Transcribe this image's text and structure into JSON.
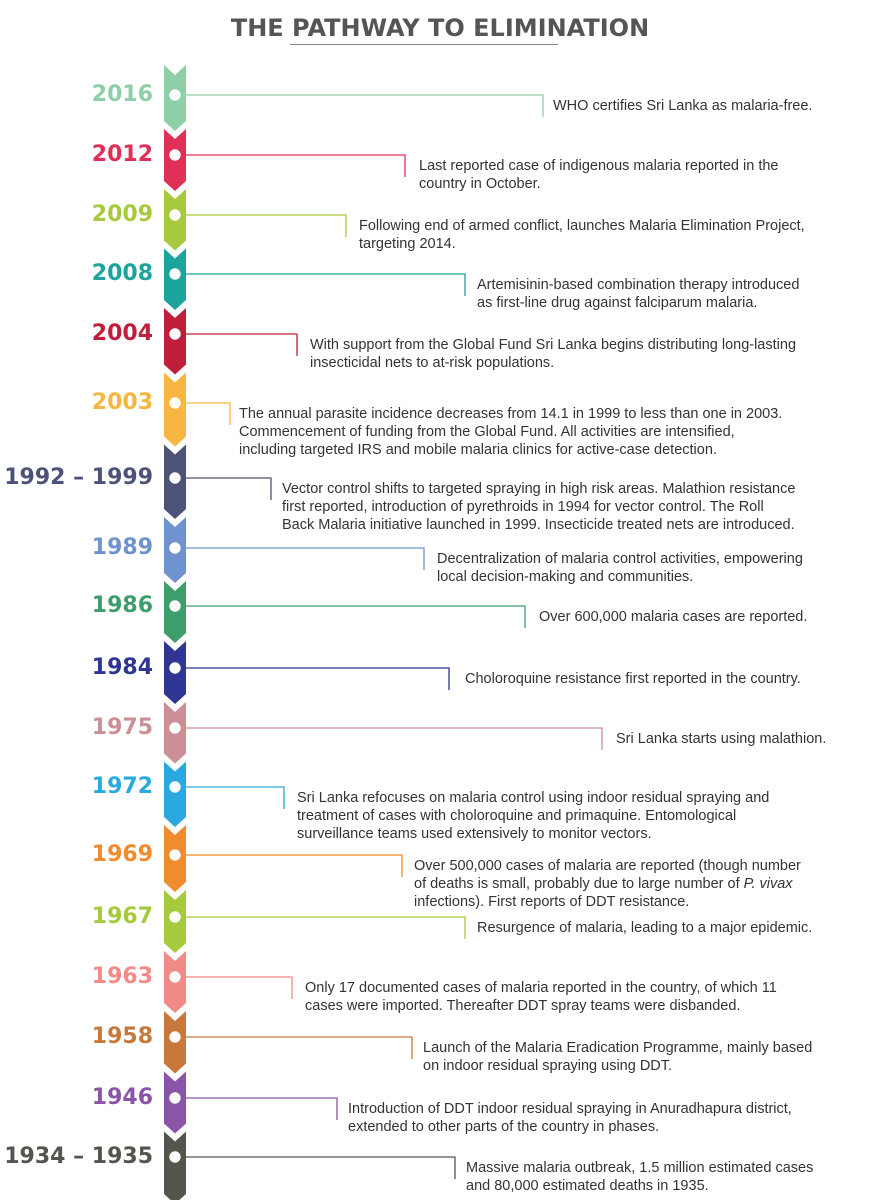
{
  "title": "THE PATHWAY TO ELIMINATION",
  "events": [
    {
      "year": "2016",
      "color": "#8ecfa8",
      "lines": [
        "WHO certifies Sri Lanka as malaria-free."
      ]
    },
    {
      "year": "2012",
      "color": "#e03058",
      "lines": [
        "Last reported case of indigenous malaria reported in the",
        "country in October."
      ]
    },
    {
      "year": "2009",
      "color": "#a6c93e",
      "lines": [
        "Following end of armed conflict, launches Malaria Elimination Project,",
        "targeting 2014."
      ]
    },
    {
      "year": "2008",
      "color": "#1ba39c",
      "lines": [
        "Artemisinin-based combination therapy introduced",
        "as first-line drug against falciparum malaria."
      ]
    },
    {
      "year": "2004",
      "color": "#bf1f3a",
      "lines": [
        "With support from the Global Fund Sri Lanka begins distributing long-lasting",
        "insecticidal nets to at-risk populations."
      ]
    },
    {
      "year": "2003",
      "color": "#f7b641",
      "lines": [
        "The annual parasite incidence decreases from 14.1 in 1999 to less than one in 2003.",
        "Commencement of funding from the Global Fund. All activities are intensified,",
        "including targeted IRS and mobile malaria clinics for active-case detection."
      ]
    },
    {
      "year": "1992 – 1999",
      "color": "#4d5278",
      "lines": [
        "Vector control shifts to targeted spraying in high risk areas. Malathion resistance",
        "first reported, introduction of pyrethroids in 1994 for vector control. The Roll",
        "Back Malaria initiative launched in 1999. Insecticide treated nets are introduced."
      ]
    },
    {
      "year": "1989",
      "color": "#6f93cf",
      "lines": [
        "Decentralization of malaria control activities, empowering",
        "local decision-making and communities."
      ]
    },
    {
      "year": "1986",
      "color": "#3d9e6c",
      "lines": [
        "Over 600,000 malaria cases are reported."
      ]
    },
    {
      "year": "1984",
      "color": "#2e3592",
      "lines": [
        "Choloroquine resistance first reported in the country."
      ]
    },
    {
      "year": "1975",
      "color": "#cb8f95",
      "lines": [
        "Sri Lanka starts using malathion."
      ]
    },
    {
      "year": "1972",
      "color": "#2aa9e0",
      "lines": [
        "Sri Lanka refocuses on malaria control using indoor residual spraying and",
        "treatment of cases with choloroquine and primaquine. Entomological",
        "surveillance teams used extensively to monitor vectors."
      ]
    },
    {
      "year": "1969",
      "color": "#f08b2e",
      "lines": [
        "Over 500,000 cases of malaria are reported (though number",
        "of deaths is small, probably due to large number of P. vivax",
        "infections). First reports of DDT resistance."
      ]
    },
    {
      "year": "1967",
      "color": "#a6c93e",
      "lines": [
        "Resurgence of malaria, leading to a major epidemic."
      ]
    },
    {
      "year": "1963",
      "color": "#f28a87",
      "lines": [
        "Only 17 documented cases of malaria reported in the country, of which 11",
        "cases were imported. Thereafter DDT spray teams were disbanded."
      ]
    },
    {
      "year": "1958",
      "color": "#c8783b",
      "lines": [
        "Launch of the Malaria Eradication Programme, mainly based",
        "on indoor residual spraying using DDT."
      ]
    },
    {
      "year": "1946",
      "color": "#8a54a8",
      "lines": [
        "Introduction of DDT indoor residual spraying in Anuradhapura district,",
        "extended to other parts of the country in phases."
      ]
    },
    {
      "year": "1934 – 1935",
      "color": "#55554d",
      "lines": [
        "Massive malaria outbreak, 1.5 million estimated cases",
        "and 80,000 estimated deaths in 1935."
      ]
    }
  ]
}
